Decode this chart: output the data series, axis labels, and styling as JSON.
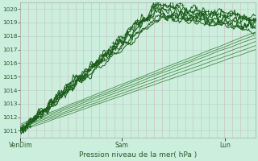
{
  "bg_color": "#cceedd",
  "grid_color_h": "#bbcccc",
  "grid_color_v": "#ccbbbb",
  "line_color_dark": "#1a5c1a",
  "line_color_thin": "#2a7a2a",
  "ylabel_ticks": [
    1011,
    1012,
    1013,
    1014,
    1015,
    1016,
    1017,
    1018,
    1019,
    1020
  ],
  "ymin": 1010.5,
  "ymax": 1020.5,
  "xlabel": "Pression niveau de la mer( hPa )",
  "xtick_labels": [
    "VenDim",
    "Sam",
    "Lun"
  ],
  "xtick_positions": [
    0.0,
    0.43,
    0.87
  ],
  "n_points": 300,
  "title": ""
}
